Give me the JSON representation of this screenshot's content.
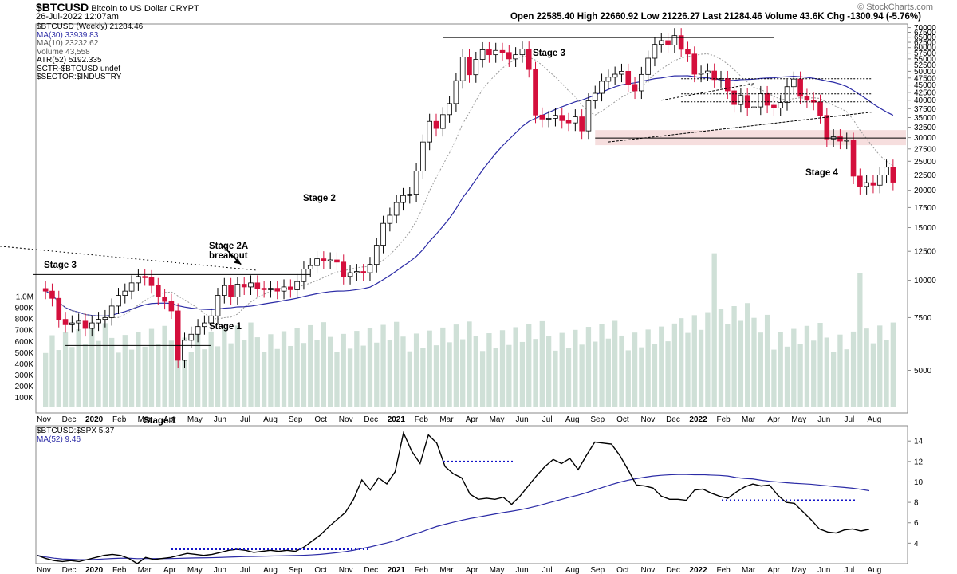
{
  "header": {
    "symbol": "$BTCUSD",
    "name": "Bitcoin to US Dollar",
    "exchange": "CRYPT",
    "date": "26-Jul-2022 12:07am",
    "watermark": "© StockCharts.com",
    "quote": "Open 22585.40  High 22660.92  Low 21226.27  Last 21284.46  Volume 43.6K  Chg -1300.94 (-5.76%)"
  },
  "legend_top": [
    "$BTCUSD (Weekly) 21284.46",
    "MA(30) 33939.83",
    "MA(10) 23232.62",
    "Volume 43,558",
    "ATR(52) 5192.335",
    "SCTR-$BTCUSD undef",
    "$SECTOR:$INDUSTRY"
  ],
  "legend_bottom": [
    "$BTCUSD:$SPX 5.37",
    "MA(52) 9.46"
  ],
  "colors": {
    "up": "#000000",
    "down": "#d40f3c",
    "ma30": "#2b2ba6",
    "ma10": "#9a9a9a",
    "volume": "#cfe0d7",
    "ratio": "#000000",
    "ratio_ma": "#2b2ba6",
    "band": "#f6dede",
    "dotted_blue": "#1414c8"
  },
  "chart_data": [
    {
      "type": "candlestick",
      "title": "$BTCUSD (Weekly)",
      "yscale": "log",
      "ylim": [
        3600,
        72000
      ],
      "y_ticks": [
        70000,
        67500,
        65000,
        62500,
        60000,
        57500,
        55000,
        52500,
        50000,
        47500,
        45000,
        42500,
        40000,
        37500,
        35000,
        32500,
        30000,
        27500,
        25000,
        22500,
        20000,
        17500,
        15000,
        12500,
        10000,
        7500,
        5000
      ],
      "volume_ticks": [
        "1.0M",
        "900K",
        "800K",
        "700K",
        "600K",
        "500K",
        "400K",
        "300K",
        "200K",
        "100K"
      ],
      "x_ticks": [
        "Nov",
        "Dec",
        "2020",
        "Feb",
        "Mar",
        "Apr",
        "May",
        "Jun",
        "Jul",
        "Aug",
        "Sep",
        "Oct",
        "Nov",
        "Dec",
        "2021",
        "Feb",
        "Mar",
        "Apr",
        "May",
        "Jun",
        "Jul",
        "Aug",
        "Sep",
        "Oct",
        "Nov",
        "Dec",
        "2022",
        "Feb",
        "Mar",
        "Apr",
        "May",
        "Jun",
        "Jul",
        "Aug"
      ],
      "closes": [
        9200,
        8700,
        7400,
        7100,
        7200,
        7300,
        6900,
        7200,
        7400,
        7500,
        8200,
        8900,
        9200,
        9800,
        10300,
        10200,
        9600,
        8800,
        8500,
        7900,
        5400,
        6300,
        6600,
        7000,
        7200,
        7600,
        8900,
        9600,
        8800,
        9700,
        9500,
        9800,
        9400,
        9300,
        9400,
        9200,
        9500,
        9300,
        9900,
        10900,
        11200,
        11800,
        11600,
        11700,
        11500,
        10300,
        10600,
        10700,
        10600,
        11300,
        13100,
        15500,
        16500,
        18200,
        19200,
        19400,
        23200,
        29000,
        34000,
        32200,
        35800,
        39000,
        46500,
        55800,
        48700,
        54800,
        59000,
        56800,
        58700,
        57800,
        55000,
        56800,
        59300,
        50700,
        35700,
        34600,
        34800,
        35600,
        34200,
        33600,
        35200,
        31600,
        39800,
        42200,
        46300,
        47800,
        48900,
        50000,
        45200,
        43000,
        48800,
        55300,
        61500,
        63300,
        61200,
        65800,
        59200,
        57100,
        48900,
        49300,
        50100,
        46900,
        47300,
        43000,
        38700,
        41500,
        37700,
        38000,
        42100,
        38500,
        37700,
        39300,
        44400,
        47100,
        41200,
        40000,
        39400,
        35600,
        29700,
        30200,
        29200,
        29400,
        22300,
        20600,
        21200,
        20800,
        22500,
        23900,
        21284
      ],
      "milestones": [
        {
          "label": "Nov",
          "v": 9200
        },
        {
          "label": "2020",
          "v": 7200
        },
        {
          "label": "Mar",
          "v": 5400
        },
        {
          "label": "Aug",
          "v": 11800
        },
        {
          "label": "2021",
          "v": 29000
        },
        {
          "label": "Apr",
          "v": 59000
        },
        {
          "label": "Nov",
          "v": 65800
        },
        {
          "label": "Jun",
          "v": 20600
        },
        {
          "label": "Last",
          "v": 21284
        }
      ],
      "ma30_note": "MA(30) blue line",
      "ma10_note": "MA(10) dotted grey line",
      "annotations": [
        "Stage 3",
        "Stage 2A\nbreakout",
        "Stage 2",
        "Stage 1",
        "Stage 1",
        "Stage 3",
        "Stage 4"
      ]
    },
    {
      "type": "line",
      "title": "$BTCUSD:$SPX",
      "ylim": [
        2,
        15.5
      ],
      "y_ticks": [
        14,
        12,
        10,
        8,
        6,
        4
      ],
      "values": [
        2.8,
        2.5,
        2.3,
        2.2,
        2.3,
        2.2,
        2.4,
        2.6,
        2.8,
        2.9,
        2.8,
        2.5,
        2.0,
        2.6,
        2.4,
        2.5,
        2.6,
        2.8,
        3.0,
        2.9,
        2.8,
        2.9,
        3.1,
        3.3,
        3.4,
        3.3,
        3.1,
        3.2,
        3.3,
        3.2,
        3.3,
        3.2,
        3.6,
        4.2,
        4.8,
        5.6,
        6.3,
        7.0,
        8.3,
        10.2,
        9.2,
        10.4,
        9.8,
        11.0,
        14.8,
        13.0,
        11.8,
        14.6,
        13.8,
        11.5,
        10.8,
        10.4,
        8.8,
        8.3,
        8.4,
        8.3,
        8.5,
        7.8,
        8.6,
        9.6,
        10.6,
        11.5,
        12.2,
        11.8,
        12.3,
        11.2,
        12.6,
        13.9,
        13.8,
        13.7,
        12.6,
        11.2,
        9.7,
        9.6,
        9.4,
        8.6,
        8.3,
        8.3,
        8.2,
        9.2,
        9.3,
        8.9,
        8.6,
        8.4,
        9.0,
        9.5,
        9.8,
        9.6,
        9.7,
        8.7,
        8.0,
        7.9,
        7.1,
        6.3,
        5.4,
        5.1,
        5.0,
        5.3,
        5.4,
        5.2,
        5.37
      ],
      "ma52_note": "MA(52) blue line"
    }
  ]
}
